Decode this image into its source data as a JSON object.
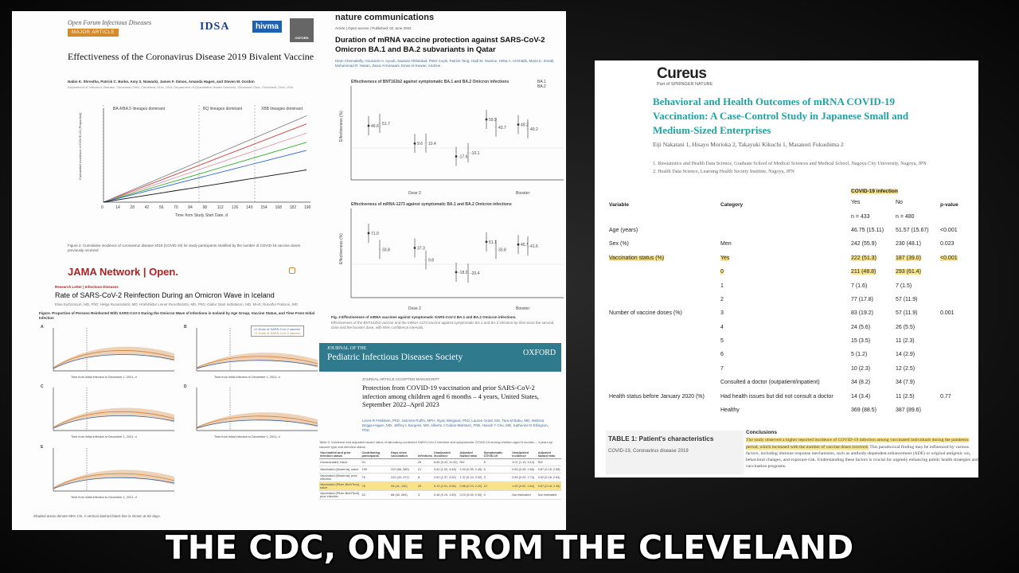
{
  "paperA": {
    "journal": "Open Forum Infectious Diseases",
    "tag": "MAJOR ARTICLE",
    "logos": [
      "IDSA",
      "hivma",
      "OXFORD"
    ],
    "title": "Effectiveness of the Coronavirus Disease 2019 Bivalent Vaccine",
    "authors": "Nabin K. Shrestha, Patrick C. Burke, Amy S. Nowacki, James F. Simon, Amanda Hagen, and Steven M. Gordon",
    "periods": [
      "BA.4/BA.5 lineages dominant",
      "BQ lineages dominant",
      "XBB lineages dominant"
    ],
    "chart_data": {
      "type": "line",
      "xlabel": "Time from Study Start Date, d",
      "ylabel": "Cumulative Incidence of COVID-19 (Proportion)",
      "x": [
        0,
        14,
        28,
        42,
        56,
        70,
        84,
        98,
        112,
        126,
        140,
        154,
        168,
        182,
        196
      ],
      "ylim": [
        0,
        0.16
      ]
    },
    "figure_caption": "Figure 2. Cumulative incidence of coronavirus disease 2019 (COVID-19) for study participants stratified by the number of COVID-19 vaccine doses previously received.",
    "jama_brand": "JAMA Network | Open.",
    "jama_section": "Research Letter | Infectious Diseases",
    "jama_title": "Rate of SARS-CoV-2 Reinfection During an Omicron Wave in Iceland",
    "jama_fig_caption": "Figure. Proportion of Persons Reinfected With SARS-CoV-2 During the Omicron Wave of Infections in Iceland by Age Group, Vaccine Status, and Time From Initial Infection",
    "legend": [
      "≥1 Dose of SARS-CoV-2 vaccine",
      "<1 Dose of SARS-CoV-2 vaccine"
    ],
    "panels": [
      "A",
      "B",
      "C",
      "D",
      "E"
    ],
    "xaxis": "Time from initial infection to December 1, 2021, d",
    "footnote": "Shaded areas denote 95% CIs. A vertical dashed black line is shown at 60 days."
  },
  "paperB": {
    "journal": "nature communications",
    "meta": "Article | Open access | Published: 02 June 2022",
    "title": "Duration of mRNA vaccine protection against SARS-CoV-2 Omicron BA.1 and BA.2 subvariants in Qatar",
    "authors": "Hiam Chemaitelly, Houssein H. Ayoub, Sawsan AlMukdad, Peter Coyle, Patrick Tang, Hadi M. Yassine, Heba A. Al-Khatib, Maria K. Smatti, Mohammad R. Hasan, Zaina Al-Kanaani, Einas Al-Kuwari, Andrew",
    "chart1_title": "Effectiveness of BNT162b2 against symptomatic BA.1 and BA.2 Omicron infections",
    "chart2_title": "Effectiveness of mRNA-1273 against symptomatic BA.1 and BA.2 Omicron infections",
    "legend": [
      "BA.1",
      "BA.2"
    ],
    "ylabel": "Effectiveness (%)",
    "groups": [
      "Dose 2",
      "Booster"
    ],
    "chart1_values": [
      "46.6",
      "51.7",
      "9.6",
      "10.4",
      "-17.6",
      "-10.1",
      "59.9",
      "43.7",
      "49.2",
      "40.2"
    ],
    "chart2_values": [
      "71.0",
      "33.8",
      "37.3",
      "9.8",
      "-18.2",
      "-20.4",
      "51.1",
      "33.8",
      "45.1",
      "41.6"
    ],
    "caption": "Fig. 3 Effectiveness of mRNA vaccines against symptomatic SARS-CoV-2 BA.1 and BA.2 Omicron infections.",
    "pids_journal": "JOURNAL OF THE",
    "pids_name": "Pediatric Infectious Diseases Society",
    "pids_oxford": "OXFORD",
    "pids_tag": "JOURNAL ARTICLE  ACCEPTED MANUSCRIPT",
    "pids_title": "Protection from COVID-19 vaccination and prior SARS-CoV-2 infection among children aged 6 months – 4 years, United States, September 2022–April 2023",
    "pids_authors": "Leora R Feldstein, PhD, Jasmine Ruffin, MPH, Ryan Wiegand, PhD, Lauren Grant, MS, Tara M Babu, MD, Melissa Briggs-Hagen, MD, Jeffrey L Burgess, MD, Alberto J Caban-Martinez, PhD, Hanah Y Chu, MD, Katherine D Ellingson, PhD",
    "pids_table_caption": "Table 2. Incidence and adjusted hazard ratios of laboratory-confirmed SARS-CoV-2 infection and symptomatic COVID-19 among children aged 6 months – 4 years by vaccine type and infection status",
    "pids_headers": [
      "Vaccination and prior infection status",
      "Contributing participants",
      "Days since vaccination",
      "Infections",
      "Unadjusted incidence",
      "Adjusted hazard ratio",
      "Symptomatic COVID-19",
      "Unadjusted incidence",
      "Adjusted hazard ratio"
    ],
    "pids_rows": [
      [
        "Unvaccinated, naive",
        "94",
        "",
        "25",
        "8.06 (5.42, 11.92)",
        "Ref",
        "8",
        "3.21 (1.13, 9.14)",
        "Ref"
      ],
      [
        "Vaccinated (Moderna), naive",
        "195",
        "310 (56, 380)",
        "21",
        "3.40 (1.30, 5.48)",
        "1.00 (0.35, 2.45)",
        "5",
        "0.83 (0.28, 2.66)",
        "0.87 (0.15, 2.58)"
      ],
      [
        "Vaccinated (Moderna), prior infection",
        "76",
        "312 (43, 371)",
        "8",
        "2.92 (1.37, 4.52)",
        "1.37 (0.13, 3.32)",
        "3",
        "0.89 (0.29, 2.74)",
        "0.52 (0.18, 2.84)"
      ],
      [
        "Vaccinated (Pfizer-BioNTech), naive",
        "78",
        "95 (41, 140)",
        "20",
        "5.13 (2.91, 8.56)",
        "0.88 (0.23, 2.20)",
        "12",
        "1.50 (0.82, 2.64)",
        "0.87 (0.18, 2.48)"
      ],
      [
        "Vaccinated (Pfizer-BioNTech), prior infection",
        "53",
        "88 (50, 264)",
        "3",
        "0.48 (0.19, 1.60)",
        "0.22 (0.05, 0.90)",
        "0",
        "Not estimated",
        "Not estimated"
      ]
    ]
  },
  "paperC": {
    "journal": "Cureus",
    "publisher": "Part of SPRINGER NATURE",
    "title": "Behavioral and Health Outcomes of mRNA COVID-19 Vaccination: A Case-Control Study in Japanese Small and Medium-Sized Enterprises",
    "authors": "Eiji Nakatani 1, Hisayo Morioka 2, Takayuki Kikuchi 1, Masanori Fukushima 2",
    "affiliations": "1. Biostatistics and Health Data Science, Graduate School of Medical Sciences and Medical School, Nagoya City University, Nagoya, JPN 2. Health Data Science, Learning Health Society Institute, Nagoya, JPN",
    "table": {
      "col_variable": "Variable",
      "col_category": "Category",
      "col_group": "COVID-19 infection",
      "col_yes": "Yes",
      "col_no": "No",
      "col_p": "p-value",
      "n_yes": "n = 433",
      "n_no": "n = 480",
      "rows": [
        {
          "variable": "Age (years)",
          "category": "",
          "yes": "46.75 (15.11)",
          "no": "51.57 (15.67)",
          "p": "<0.001",
          "hl": false
        },
        {
          "variable": "Sex (%)",
          "category": "Men",
          "yes": "242 (55.9)",
          "no": "230 (48.1)",
          "p": "0.023",
          "hl": false
        },
        {
          "variable": "Vaccination status (%)",
          "category": "Yes",
          "yes": "222 (51.3)",
          "no": "187 (39.0)",
          "p": "<0.001",
          "hl": true
        },
        {
          "variable": "",
          "category": "0",
          "yes": "211 (48.8)",
          "no": "293 (61.4)",
          "p": "",
          "hl": true
        },
        {
          "variable": "",
          "category": "1",
          "yes": "7 (1.6)",
          "no": "7 (1.5)",
          "p": "",
          "hl": false
        },
        {
          "variable": "",
          "category": "2",
          "yes": "77 (17.8)",
          "no": "57 (11.9)",
          "p": "",
          "hl": false
        },
        {
          "variable": "Number of vaccine doses (%)",
          "category": "3",
          "yes": "83 (19.2)",
          "no": "57 (11.9)",
          "p": "0.001",
          "hl": false
        },
        {
          "variable": "",
          "category": "4",
          "yes": "24 (5.6)",
          "no": "26 (5.5)",
          "p": "",
          "hl": false
        },
        {
          "variable": "",
          "category": "5",
          "yes": "15 (3.5)",
          "no": "11 (2.3)",
          "p": "",
          "hl": false
        },
        {
          "variable": "",
          "category": "6",
          "yes": "5 (1.2)",
          "no": "14 (2.9)",
          "p": "",
          "hl": false
        },
        {
          "variable": "",
          "category": "7",
          "yes": "10 (2.3)",
          "no": "12 (2.5)",
          "p": "",
          "hl": false
        },
        {
          "variable": "",
          "category": "Consulted a doctor (outpatient/inpatient)",
          "yes": "34 (8.2)",
          "no": "34 (7.9)",
          "p": "",
          "hl": false
        },
        {
          "variable": "Health status before January 2020 (%)",
          "category": "Had health issues but did not consult a doctor",
          "yes": "14 (3.4)",
          "no": "11 (2.5)",
          "p": "0.77",
          "hl": false
        },
        {
          "variable": "",
          "category": "Healthy",
          "yes": "369 (88.5)",
          "no": "387 (89.6)",
          "p": "",
          "hl": false
        }
      ]
    },
    "table_caption": "TABLE 1: Patient's characteristics",
    "table_note": "COVID-19, Coronavirus disease 2019",
    "conclusions_title": "Conclusions",
    "conclusions_hl": "The study observed a higher reported incidence of COVID-19 infection among vaccinated individuals during the pandemic period, which increased with the number of vaccine doses received.",
    "conclusions_rest": " This paradoxical finding may be influenced by various factors, including immune response mechanisms, such as antibody-dependent enhancement (ADE) or original antigenic sin, behavioral changes, and exposure risk. Understanding these factors is crucial for urgently enhancing public health strategies and vaccination programs."
  },
  "caption": "THE CDC, ONE FROM THE CLEVELAND",
  "colors": {
    "highlight": "#f8e38a",
    "cureus_title": "#20a4a4",
    "pids_header": "#2f7a8c",
    "ofid_orange": "#d58a2c",
    "jama_red": "#b21f24"
  }
}
